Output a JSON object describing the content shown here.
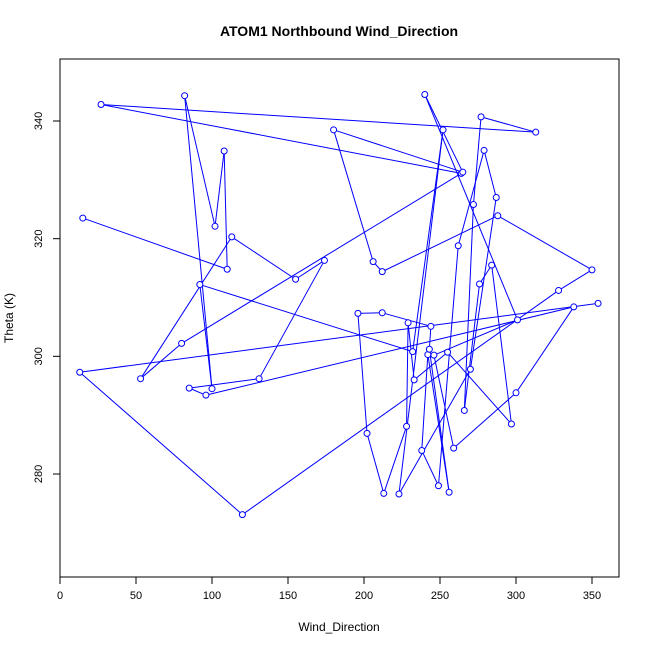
{
  "chart_data": {
    "type": "line",
    "title": "ATOM1 Northbound Wind_Direction",
    "xlabel": "Wind_Direction",
    "ylabel": "Theta (K)",
    "xlim": [
      0,
      365
    ],
    "ylim": [
      263,
      350
    ],
    "xticks": [
      0,
      50,
      100,
      150,
      200,
      250,
      300,
      350
    ],
    "yticks": [
      280,
      300,
      320,
      340
    ],
    "series_color": "#0000ff",
    "points": [
      [
        15,
        323.5
      ],
      [
        110,
        314.8
      ],
      [
        108,
        334.9
      ],
      [
        102,
        322.1
      ],
      [
        82,
        344.3
      ],
      [
        100,
        294.5
      ],
      [
        92,
        312.2
      ],
      [
        232,
        300.8
      ],
      [
        252,
        338.5
      ],
      [
        223,
        276.6
      ],
      [
        270,
        297.8
      ],
      [
        287,
        327
      ],
      [
        279,
        335
      ],
      [
        262,
        318.8
      ],
      [
        249,
        278
      ],
      [
        238,
        284
      ],
      [
        242,
        300.3
      ],
      [
        256,
        276.9
      ],
      [
        243,
        301.2
      ],
      [
        244,
        305.1
      ],
      [
        212,
        307.4
      ],
      [
        196,
        307.3
      ],
      [
        202,
        286.9
      ],
      [
        213,
        276.7
      ],
      [
        228,
        288.1
      ],
      [
        229,
        305.7
      ],
      [
        233,
        296
      ],
      [
        255,
        300.7
      ],
      [
        297,
        288.5
      ],
      [
        284,
        315.5
      ],
      [
        276,
        312.3
      ],
      [
        266,
        290.8
      ],
      [
        272,
        325.8
      ],
      [
        277,
        340.7
      ],
      [
        313,
        338.1
      ],
      [
        27,
        342.8
      ],
      [
        264,
        331.1
      ],
      [
        80,
        302.2
      ],
      [
        53,
        296.2
      ],
      [
        113,
        320.3
      ],
      [
        155,
        313.1
      ],
      [
        174,
        316.3
      ],
      [
        131,
        296.2
      ],
      [
        85,
        294.6
      ],
      [
        96,
        293.4
      ],
      [
        338,
        308.4
      ],
      [
        300,
        293.8
      ],
      [
        259,
        284.4
      ],
      [
        246,
        300.2
      ],
      [
        301,
        306.2
      ],
      [
        240,
        344.5
      ],
      [
        265,
        331.3
      ],
      [
        180,
        338.5
      ],
      [
        206,
        316.1
      ],
      [
        212,
        314.4
      ],
      [
        288,
        323.9
      ],
      [
        350,
        314.7
      ],
      [
        328,
        311.2
      ],
      [
        120,
        273.1
      ],
      [
        13,
        297.3
      ],
      [
        354,
        309
      ]
    ]
  }
}
